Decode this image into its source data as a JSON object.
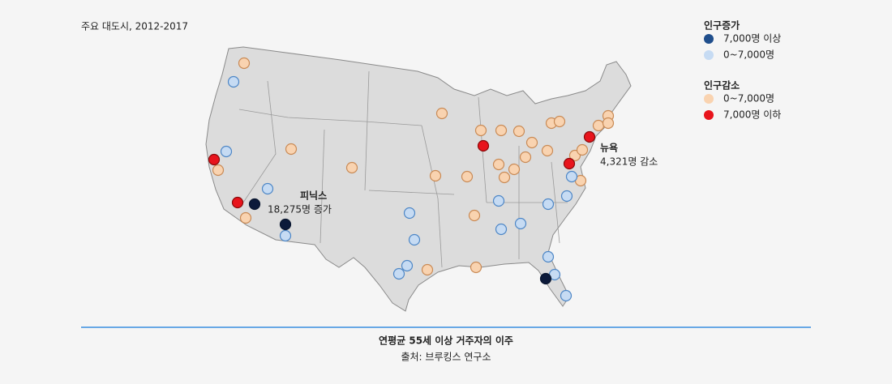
{
  "header": {
    "subtitle": "주요 대도시, 2012-2017"
  },
  "legend": [
    {
      "title": "인구증가",
      "items": [
        {
          "label": "7,000명 이상",
          "color": "#1f4e8c"
        },
        {
          "label": "0~7,000명",
          "color": "#c6dbf3"
        }
      ]
    },
    {
      "title": "인구감소",
      "items": [
        {
          "label": "0~7,000명",
          "color": "#f9d3b0"
        },
        {
          "label": "7,000명 이하",
          "color": "#e8141c"
        }
      ]
    }
  ],
  "annotations": [
    {
      "city": "피닉스",
      "note": "18,275명 증가"
    },
    {
      "city": "뉴욕",
      "note": "4,321명 감소"
    }
  ],
  "footer": {
    "title": "연평균 55세 이상 거주자의 이주",
    "source": "출처: 브루킹스 연구소"
  }
}
